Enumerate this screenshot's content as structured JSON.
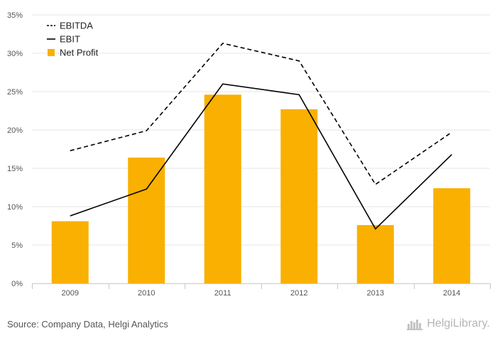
{
  "chart_data": {
    "type": "bar",
    "categories": [
      "2009",
      "2010",
      "2011",
      "2012",
      "2013",
      "2014"
    ],
    "series": [
      {
        "name": "Net Profit",
        "type": "bar",
        "color": "#f9b000",
        "values": [
          8.1,
          16.4,
          24.6,
          22.7,
          7.6,
          12.4
        ]
      },
      {
        "name": "EBITDA",
        "type": "line",
        "style": "dashed",
        "color": "#000000",
        "values": [
          17.3,
          19.9,
          31.3,
          29.0,
          12.9,
          19.7
        ]
      },
      {
        "name": "EBIT",
        "type": "line",
        "style": "solid",
        "color": "#000000",
        "values": [
          8.8,
          12.3,
          26.0,
          24.6,
          7.1,
          16.8
        ]
      }
    ],
    "legend": {
      "placement": "top-left",
      "order": [
        "EBITDA",
        "EBIT",
        "Net Profit"
      ]
    },
    "y_ticks": [
      "0%",
      "5%",
      "10%",
      "15%",
      "20%",
      "25%",
      "30%",
      "35%"
    ],
    "ylim": [
      0,
      35
    ],
    "grid": true,
    "title": "",
    "xlabel": "",
    "ylabel": ""
  },
  "footer": {
    "source": "Source: Company Data, Helgi Analytics",
    "brand": "HelgiLibrary."
  }
}
